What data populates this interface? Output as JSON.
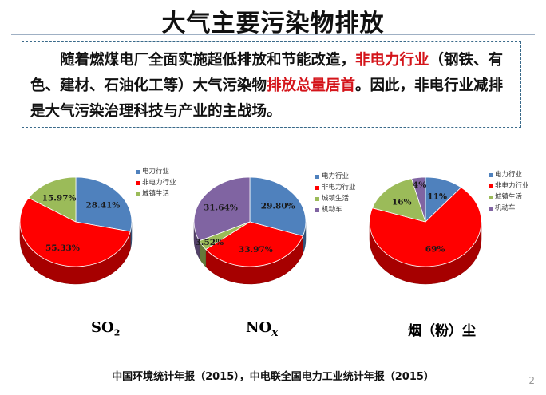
{
  "title": "大气主要污染物排放",
  "intro": {
    "p1": "随着燃煤电厂全面实施超低排放和节能改造，",
    "p1_red": "非电力行业",
    "p2": "（钢铁、有色、建材、石油化工等）大气污染物",
    "p2_red": "排放总量居首",
    "p3": "。因此，非电行业减排是大气污染治理科技与产业的主战场。"
  },
  "source": "中国环境统计年报（2015），中电联全国电力工业统计年报（2015）",
  "page_number": "2",
  "chart_data": [
    {
      "type": "pie",
      "label_main": "SO",
      "label_sub": "2",
      "slices": [
        {
          "name": "电力行业",
          "value": 28.41,
          "label": "28.41%",
          "color": "#4f81bd"
        },
        {
          "name": "非电力行业",
          "value": 55.33,
          "label": "55.33%",
          "color": "#ff0000"
        },
        {
          "name": "城镇生活",
          "value": 15.97,
          "label": "15.97%",
          "color": "#9bbb59"
        }
      ]
    },
    {
      "type": "pie",
      "label_main": "NO",
      "label_sub": "x",
      "slices": [
        {
          "name": "电力行业",
          "value": 29.8,
          "label": "29.80%",
          "color": "#4f81bd"
        },
        {
          "name": "非电力行业",
          "value": 33.97,
          "label": "33.97%",
          "color": "#ff0000"
        },
        {
          "name": "城镇生活",
          "value": 3.52,
          "label": "3.52%",
          "color": "#9bbb59"
        },
        {
          "name": "机动车",
          "value": 31.64,
          "label": "31.64%",
          "color": "#8064a2"
        }
      ]
    },
    {
      "type": "pie",
      "label_main": "烟（粉）尘",
      "label_sub": "",
      "slices": [
        {
          "name": "电力行业",
          "value": 11,
          "label": "11%",
          "color": "#4f81bd"
        },
        {
          "name": "非电力行业",
          "value": 69,
          "label": "69%",
          "color": "#ff0000"
        },
        {
          "name": "城镇生活",
          "value": 16,
          "label": "16%",
          "color": "#9bbb59"
        },
        {
          "name": "机动车",
          "value": 4,
          "label": "4%",
          "color": "#8064a2"
        }
      ]
    }
  ]
}
